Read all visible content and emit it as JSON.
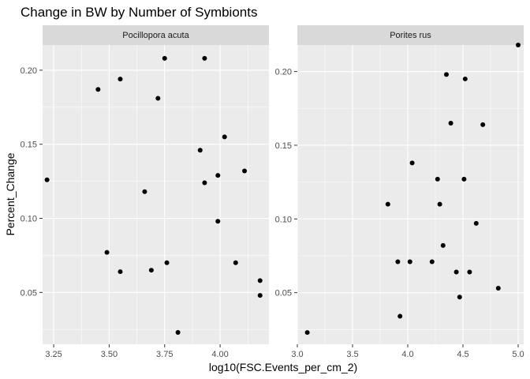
{
  "title": "Change in BW by Number of Symbionts",
  "xlabel": "log10(FSC.Events_per_cm_2)",
  "ylabel": "Percent_Change",
  "point_color": "#000000",
  "chart_data": [
    {
      "type": "scatter",
      "name": "Pocillopora acuta",
      "xlim": [
        3.2,
        4.22
      ],
      "ylim": [
        0.015,
        0.217
      ],
      "xticks": [
        3.25,
        3.5,
        3.75,
        4.0
      ],
      "xtick_labels": [
        "3.25",
        "3.50",
        "3.75",
        "4.00"
      ],
      "yticks": [
        0.05,
        0.1,
        0.15,
        0.2
      ],
      "ytick_labels": [
        "0.05",
        "0.10",
        "0.15",
        "0.20"
      ],
      "grid": true,
      "x": [
        3.22,
        3.45,
        3.49,
        3.55,
        3.55,
        3.66,
        3.69,
        3.72,
        3.75,
        3.76,
        3.81,
        3.91,
        3.93,
        3.93,
        3.99,
        3.99,
        4.02,
        4.07,
        4.11,
        4.18,
        4.18
      ],
      "y": [
        0.126,
        0.187,
        0.077,
        0.194,
        0.064,
        0.118,
        0.065,
        0.181,
        0.208,
        0.07,
        0.023,
        0.146,
        0.124,
        0.208,
        0.129,
        0.098,
        0.155,
        0.07,
        0.132,
        0.058,
        0.048
      ]
    },
    {
      "type": "scatter",
      "name": "Porites rus",
      "xlim": [
        3.0,
        5.05
      ],
      "ylim": [
        0.015,
        0.218
      ],
      "xticks": [
        3.0,
        3.5,
        4.0,
        4.5,
        5.0
      ],
      "xtick_labels": [
        "3.0",
        "3.5",
        "4.0",
        "4.5",
        "5.0"
      ],
      "yticks": [
        0.05,
        0.1,
        0.15,
        0.2
      ],
      "ytick_labels": [
        "0.05",
        "0.10",
        "0.15",
        "0.20"
      ],
      "grid": true,
      "x": [
        3.09,
        3.82,
        3.91,
        3.93,
        4.02,
        4.04,
        4.22,
        4.27,
        4.29,
        4.32,
        4.35,
        4.39,
        4.44,
        4.47,
        4.51,
        4.52,
        4.56,
        4.62,
        4.68,
        4.82,
        5.0
      ],
      "y": [
        0.023,
        0.11,
        0.071,
        0.034,
        0.071,
        0.138,
        0.071,
        0.127,
        0.11,
        0.082,
        0.198,
        0.165,
        0.064,
        0.047,
        0.127,
        0.195,
        0.064,
        0.097,
        0.164,
        0.053,
        0.218
      ]
    }
  ]
}
